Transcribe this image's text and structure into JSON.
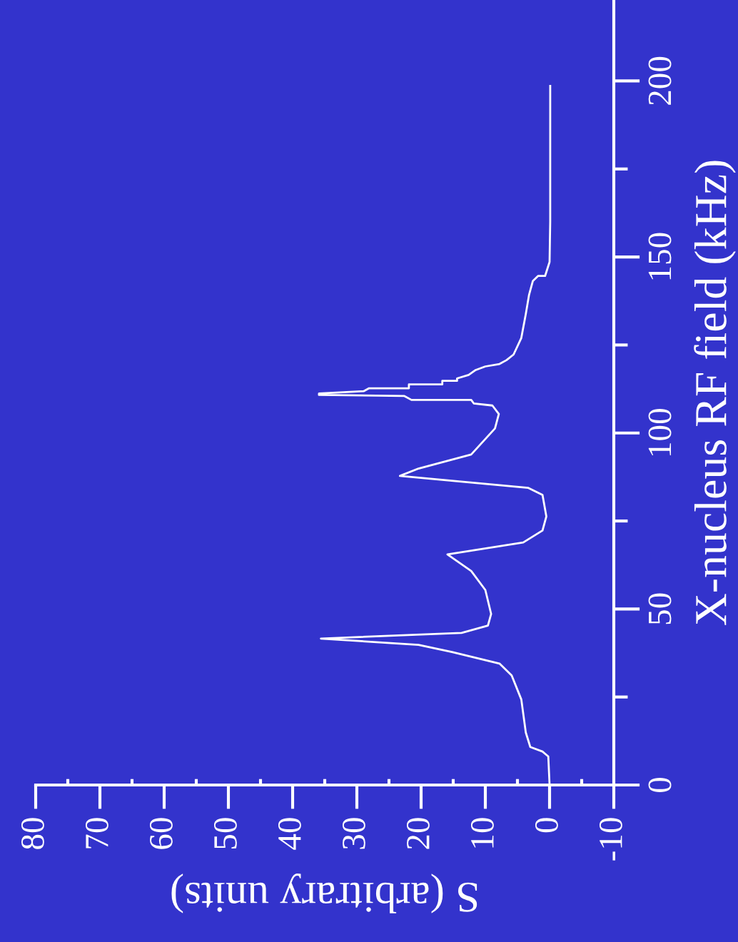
{
  "chart_data": {
    "type": "line",
    "orientation": "horizontal",
    "xlabel": "S (arbitrary units)",
    "ylabel": "X-nucleus RF field (kHz)",
    "xlim": [
      80,
      -10
    ],
    "xticks": [
      80,
      70,
      60,
      50,
      40,
      30,
      20,
      10,
      0,
      -10
    ],
    "ylim": [
      0,
      223
    ],
    "yticks": [
      0,
      50,
      100,
      150,
      200
    ],
    "grid": false,
    "marker": "none",
    "line_style": "solid",
    "series": [
      {
        "color": "#ffffff",
        "x": [
          0,
          8.1,
          9.5,
          10.8,
          14.9,
          24.3,
          31.1,
          34.5,
          37.8,
          39.8,
          41.6,
          43.2,
          45.3,
          48.6,
          55.4,
          60.8,
          65.5,
          68.9,
          72.3,
          76.3,
          82.4,
          84.4,
          87.8,
          89.9,
          93.9,
          101.3,
          105.4,
          107.8,
          108.4,
          109.4,
          109.4,
          110.5,
          110.8,
          111.2,
          111.9,
          112.7,
          112.7,
          113.8,
          113.8,
          114.8,
          114.8,
          115.5,
          116.5,
          117.9,
          118.9,
          119.6,
          120.7,
          122.3,
          127,
          133.8,
          139.2,
          143.2,
          144.6,
          144.6,
          148.6,
          160,
          198.6
        ],
        "values": [
          0,
          0.2,
          1.1,
          3.0,
          3.7,
          4.4,
          5.9,
          7.8,
          15.2,
          20.4,
          35.6,
          13.7,
          9.6,
          9.1,
          10,
          12.2,
          15.9,
          4.1,
          1.1,
          0.5,
          1.1,
          3.3,
          23.3,
          20.4,
          12.2,
          8.5,
          7.9,
          8.9,
          11.8,
          12.2,
          21.5,
          22.6,
          35.9,
          35.9,
          28.9,
          28.1,
          21.9,
          21.9,
          16.7,
          16.7,
          14.4,
          14.4,
          12.6,
          11.5,
          10,
          7.8,
          6.7,
          5.6,
          4.4,
          3.7,
          3.2,
          2.6,
          1.8,
          0.7,
          0,
          -0.1,
          -0.1
        ]
      }
    ]
  }
}
